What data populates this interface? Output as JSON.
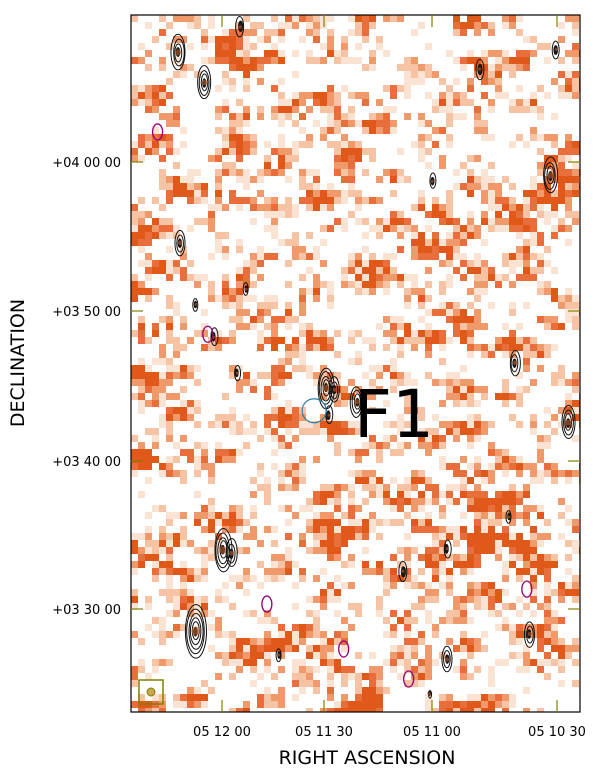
{
  "chart_data": {
    "type": "heatmap",
    "title": "",
    "xlabel": "RIGHT ASCENSION",
    "ylabel": "DECLINATION",
    "annotation": "F1",
    "x_ticks": [
      "05 12 00",
      "05 11 30",
      "05 11 00",
      "05 10 30"
    ],
    "y_ticks": [
      "+04 00 00",
      "+03 50 00",
      "+03 40 00",
      "+03 30 00"
    ],
    "x_range_arcmin": [
      -1.5,
      74.5
    ],
    "y_range_arcmin": [
      -23.2,
      23.3
    ],
    "grid": false,
    "legend": "none",
    "colors": {
      "map_low": "#ffffff",
      "map_high": "#e0581a",
      "contour": "#111111",
      "negative_contour": "#99007a",
      "beam_box": "#808000",
      "marker_circle": "#2a7fa6"
    },
    "sources": [
      {
        "x": 6.5,
        "y": 20.8,
        "size": 1.4
      },
      {
        "x": 11.0,
        "y": 18.8,
        "size": 1.3
      },
      {
        "x": 17.0,
        "y": 22.5,
        "size": 0.8
      },
      {
        "x": 6.8,
        "y": 8.1,
        "size": 1.0
      },
      {
        "x": 12.5,
        "y": 1.8,
        "size": 0.7
      },
      {
        "x": 18.0,
        "y": 5.0,
        "size": 0.5
      },
      {
        "x": 31.5,
        "y": -1.6,
        "size": 1.6
      },
      {
        "x": 33.0,
        "y": -1.7,
        "size": 1.0
      },
      {
        "x": 36.7,
        "y": -2.5,
        "size": 1.2
      },
      {
        "x": 32.0,
        "y": -3.4,
        "size": 0.7
      },
      {
        "x": 14.1,
        "y": -12.4,
        "size": 1.7
      },
      {
        "x": 15.5,
        "y": -12.6,
        "size": 1.1
      },
      {
        "x": 9.5,
        "y": -17.8,
        "size": 2.1
      },
      {
        "x": 44.5,
        "y": -13.8,
        "size": 0.8
      },
      {
        "x": 52.0,
        "y": -12.3,
        "size": 0.7
      },
      {
        "x": 52.0,
        "y": -19.7,
        "size": 1.0
      },
      {
        "x": 49.5,
        "y": 12.2,
        "size": 0.6
      },
      {
        "x": 57.5,
        "y": 19.7,
        "size": 0.8
      },
      {
        "x": 63.5,
        "y": 0.1,
        "size": 1.0
      },
      {
        "x": 69.5,
        "y": 12.6,
        "size": 1.4
      },
      {
        "x": 70.5,
        "y": 21.0,
        "size": 0.7
      },
      {
        "x": 72.5,
        "y": -3.9,
        "size": 1.3
      },
      {
        "x": 66.0,
        "y": -18.0,
        "size": 1.0
      },
      {
        "x": 9.5,
        "y": 4.0,
        "size": 0.5
      },
      {
        "x": 16.5,
        "y": -0.6,
        "size": 0.6
      },
      {
        "x": 23.5,
        "y": -19.4,
        "size": 0.5
      },
      {
        "x": 49.0,
        "y": -22.0,
        "size": 0.3
      },
      {
        "x": 62.5,
        "y": -10.2,
        "size": 0.5
      }
    ],
    "negative_contours": [
      {
        "x": 3.0,
        "y": 15.5
      },
      {
        "x": 21.5,
        "y": -16.0
      },
      {
        "x": 45.5,
        "y": -21.0
      },
      {
        "x": 65.5,
        "y": -15.0
      },
      {
        "x": 11.5,
        "y": 2.0
      },
      {
        "x": 34.5,
        "y": -19.0
      }
    ],
    "marked_position": {
      "x": 29.5,
      "y": -3.1
    }
  }
}
